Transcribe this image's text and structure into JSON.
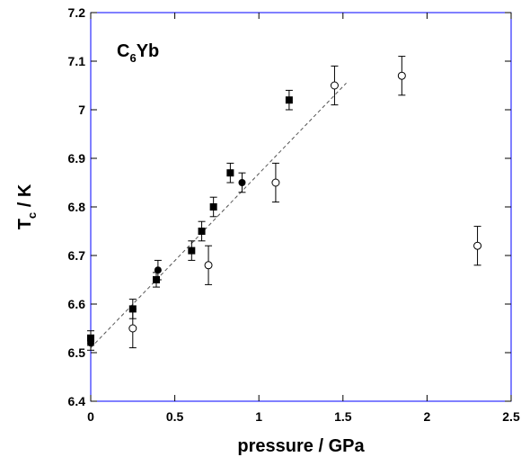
{
  "chart_data": {
    "type": "scatter",
    "xlabel": "pressure / GPa",
    "ylabel": {
      "main": "T",
      "sub": "c",
      "unit": " / K"
    },
    "annotation": {
      "main": "C",
      "sub": "6",
      "rest": "Yb"
    },
    "xlim": [
      0,
      2.5
    ],
    "ylim": [
      6.4,
      7.2
    ],
    "xticks": [
      "0",
      "0.5",
      "1",
      "1.5",
      "2",
      "2.5"
    ],
    "yticks": [
      "6.4",
      "6.5",
      "6.6",
      "6.7",
      "6.8",
      "6.9",
      "7",
      "7.1",
      "7.2"
    ],
    "grid": false,
    "frame_color": "#0000ff",
    "series": [
      {
        "marker": "filled-square",
        "points": [
          {
            "x": 0.0,
            "y": 6.53,
            "err": 0.015
          },
          {
            "x": 0.25,
            "y": 6.59,
            "err": 0.02
          },
          {
            "x": 0.39,
            "y": 6.65,
            "err": 0.015
          },
          {
            "x": 0.6,
            "y": 6.71,
            "err": 0.02
          },
          {
            "x": 0.66,
            "y": 6.75,
            "err": 0.02
          },
          {
            "x": 0.73,
            "y": 6.8,
            "err": 0.02
          },
          {
            "x": 0.83,
            "y": 6.87,
            "err": 0.02
          },
          {
            "x": 1.18,
            "y": 7.02,
            "err": 0.02
          }
        ]
      },
      {
        "marker": "filled-circle",
        "points": [
          {
            "x": 0.0,
            "y": 6.52,
            "err": 0.015
          },
          {
            "x": 0.4,
            "y": 6.67,
            "err": 0.02
          },
          {
            "x": 0.9,
            "y": 6.85,
            "err": 0.02
          }
        ]
      },
      {
        "marker": "open-circle",
        "points": [
          {
            "x": 0.25,
            "y": 6.55,
            "err": 0.04
          },
          {
            "x": 0.7,
            "y": 6.68,
            "err": 0.04
          },
          {
            "x": 1.1,
            "y": 6.85,
            "err": 0.04
          },
          {
            "x": 1.45,
            "y": 7.05,
            "err": 0.04
          },
          {
            "x": 1.85,
            "y": 7.07,
            "err": 0.04
          },
          {
            "x": 2.3,
            "y": 6.72,
            "err": 0.04
          }
        ]
      }
    ],
    "fit_line": {
      "style": "dashed",
      "x": [
        0.0,
        1.52
      ],
      "y": [
        6.51,
        7.055
      ]
    }
  }
}
